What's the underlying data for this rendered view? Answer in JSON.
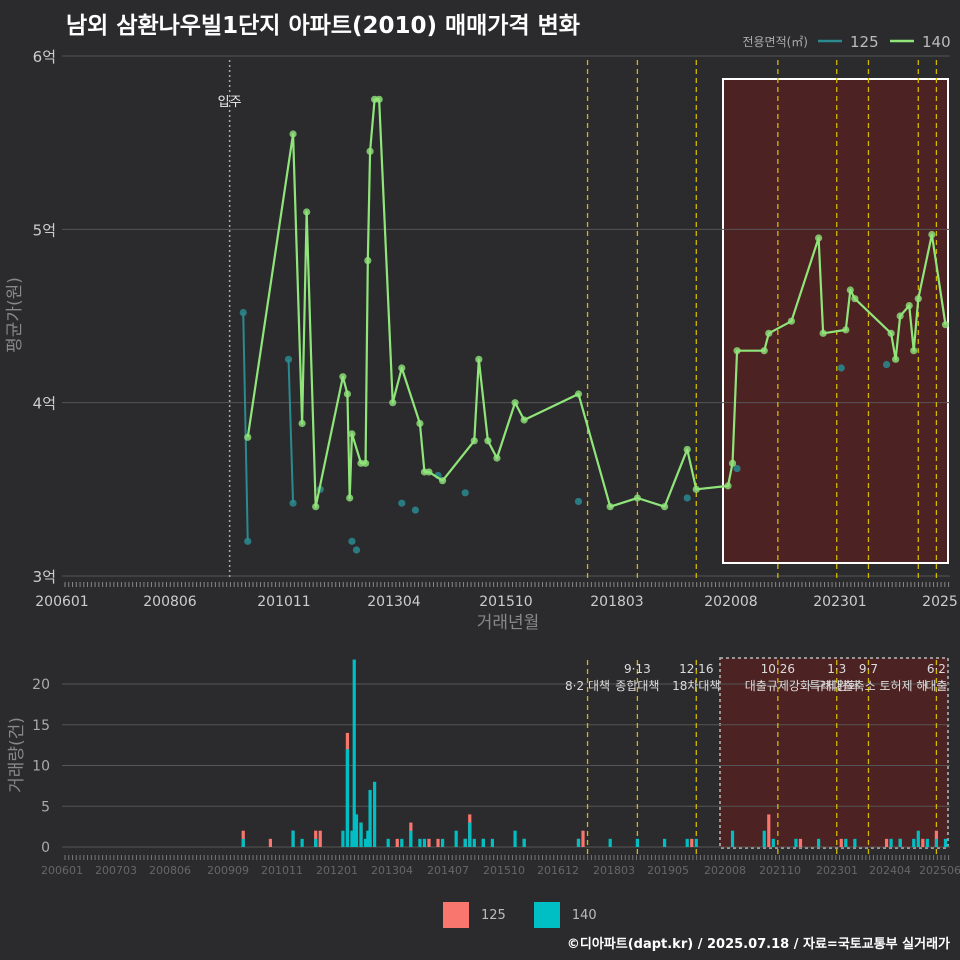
{
  "title": "남외 삼환나우빌1단지 아파트(2010) 매매가격 변화",
  "footer": "©디아파트(dapt.kr) / 2025.07.18 / 자료=국토교통부 실거래가",
  "colors": {
    "c125": "#2a8a90",
    "c140": "#90e57a",
    "bar125": "#f8766d",
    "bar140": "#00bfc4",
    "vline": "#d4b800",
    "highlight": "#5a2020"
  },
  "chart_data": [
    {
      "type": "line",
      "title": "남외 삼환나우빌1단지 아파트(2010) 매매가격 변화",
      "xlabel": "거래년월",
      "ylabel": "평균가(원)",
      "legend_title": "전용면적(㎡)",
      "legend": [
        "125",
        "140"
      ],
      "x_ticks": [
        "200601",
        "200806",
        "201011",
        "201304",
        "201510",
        "201803",
        "202008",
        "202301",
        "2025"
      ],
      "y_ticks": [
        "3억",
        "4억",
        "5억",
        "6억"
      ],
      "ylim": [
        3.0,
        6.0
      ],
      "xlim": [
        2006.0,
        2025.6
      ],
      "annotation": "입주",
      "annotation_x": 2009.7,
      "policy_lines": [
        2017.6,
        2018.7,
        2020.0,
        2021.8,
        2023.1,
        2023.8,
        2024.9,
        2025.3
      ],
      "series": [
        {
          "name": "125",
          "x": [
            2010.0,
            2010.1,
            2011.0,
            2011.1,
            2011.7,
            2012.4,
            2012.5,
            2013.5,
            2013.8,
            2014.3,
            2014.9,
            2017.4,
            2019.8,
            2020.9,
            2023.2,
            2024.2
          ],
          "y": [
            4.52,
            3.2,
            4.25,
            3.42,
            3.5,
            3.2,
            3.15,
            3.42,
            3.38,
            3.58,
            3.48,
            3.43,
            3.45,
            3.62,
            4.2,
            4.22
          ]
        },
        {
          "name": "140",
          "x": [
            2010.1,
            2011.1,
            2011.3,
            2011.4,
            2011.6,
            2012.2,
            2012.3,
            2012.35,
            2012.4,
            2012.6,
            2012.7,
            2012.75,
            2012.8,
            2012.9,
            2013.0,
            2013.3,
            2013.5,
            2013.9,
            2014.0,
            2014.1,
            2014.4,
            2015.1,
            2015.2,
            2015.4,
            2015.6,
            2016.0,
            2016.2,
            2017.4,
            2018.1,
            2018.7,
            2019.3,
            2019.8,
            2020.0,
            2020.7,
            2020.8,
            2020.9,
            2021.5,
            2021.6,
            2022.1,
            2022.7,
            2022.8,
            2023.3,
            2023.4,
            2023.5,
            2024.3,
            2024.4,
            2024.5,
            2024.7,
            2024.8,
            2024.9,
            2025.2,
            2025.5
          ],
          "y": [
            3.8,
            5.55,
            3.88,
            5.1,
            3.4,
            4.15,
            4.05,
            3.45,
            3.82,
            3.65,
            3.65,
            4.82,
            5.45,
            5.75,
            5.75,
            4.0,
            4.2,
            3.88,
            3.6,
            3.6,
            3.55,
            3.78,
            4.25,
            3.78,
            3.68,
            4.0,
            3.9,
            4.05,
            3.4,
            3.45,
            3.4,
            3.73,
            3.5,
            3.52,
            3.65,
            4.3,
            4.3,
            4.4,
            4.47,
            4.95,
            4.4,
            4.42,
            4.65,
            4.6,
            4.4,
            4.25,
            4.5,
            4.56,
            4.3,
            4.6,
            4.97,
            4.45
          ]
        }
      ]
    },
    {
      "type": "bar",
      "ylabel": "거래량(건)",
      "x_ticks": [
        "200601",
        "200703",
        "200806",
        "200909",
        "201011",
        "201201",
        "201304",
        "201407",
        "201510",
        "201612",
        "201803",
        "201905",
        "202008",
        "202110",
        "202301",
        "202404",
        "202506"
      ],
      "y_ticks": [
        "0",
        "5",
        "10",
        "15",
        "20"
      ],
      "ylim": [
        0,
        23
      ],
      "policy_labels": [
        {
          "x": 2017.6,
          "line1": "",
          "line2": "8·2 대책"
        },
        {
          "x": 2018.7,
          "line1": "9·13",
          "line2": "종합대책"
        },
        {
          "x": 2020.0,
          "line1": "12·16",
          "line2": "18차대책"
        },
        {
          "x": 2021.8,
          "line1": "10·26",
          "line2": "대출규제강화"
        },
        {
          "x": 2023.1,
          "line1": "1·3",
          "line2": "규제완화"
        },
        {
          "x": 2023.8,
          "line1": "9·7",
          "line2": "특례대출축소 토허제 해"
        },
        {
          "x": 2025.3,
          "line1": "6·2",
          "line2": "대출"
        }
      ],
      "legend": [
        "125",
        "140"
      ],
      "series": [
        {
          "name": "125",
          "x": [
            2010.0,
            2010.6,
            2011.1,
            2011.6,
            2011.7,
            2012.3,
            2012.6,
            2012.8,
            2013.4,
            2013.7,
            2014.1,
            2014.3,
            2014.9,
            2015.0,
            2015.3,
            2016.2,
            2017.4,
            2017.5,
            2019.9,
            2021.6,
            2022.3,
            2023.2,
            2024.2,
            2024.5,
            2025.0,
            2025.3
          ],
          "y": [
            2,
            1,
            2,
            2,
            2,
            14,
            3,
            1,
            1,
            3,
            1,
            1,
            1,
            4,
            1,
            1,
            1,
            2,
            1,
            4,
            1,
            1,
            1,
            1,
            1,
            2
          ]
        },
        {
          "name": "140",
          "x": [
            2010.0,
            2011.1,
            2011.3,
            2011.6,
            2012.2,
            2012.3,
            2012.4,
            2012.45,
            2012.5,
            2012.6,
            2012.7,
            2012.75,
            2012.8,
            2012.9,
            2013.2,
            2013.5,
            2013.7,
            2013.9,
            2014.0,
            2014.4,
            2014.7,
            2014.9,
            2015.0,
            2015.1,
            2015.3,
            2015.5,
            2016.0,
            2016.2,
            2017.4,
            2018.1,
            2018.7,
            2019.3,
            2019.8,
            2020.0,
            2020.8,
            2021.5,
            2021.7,
            2022.2,
            2022.7,
            2023.3,
            2023.5,
            2024.3,
            2024.5,
            2024.8,
            2024.9,
            2025.1,
            2025.3,
            2025.5
          ],
          "y": [
            1,
            2,
            1,
            1,
            2,
            12,
            2,
            23,
            4,
            3,
            1,
            2,
            7,
            8,
            1,
            1,
            2,
            1,
            1,
            1,
            2,
            1,
            3,
            1,
            1,
            1,
            2,
            1,
            1,
            1,
            1,
            1,
            1,
            1,
            2,
            2,
            1,
            1,
            1,
            1,
            1,
            1,
            1,
            1,
            2,
            1,
            1,
            1
          ]
        }
      ]
    }
  ]
}
